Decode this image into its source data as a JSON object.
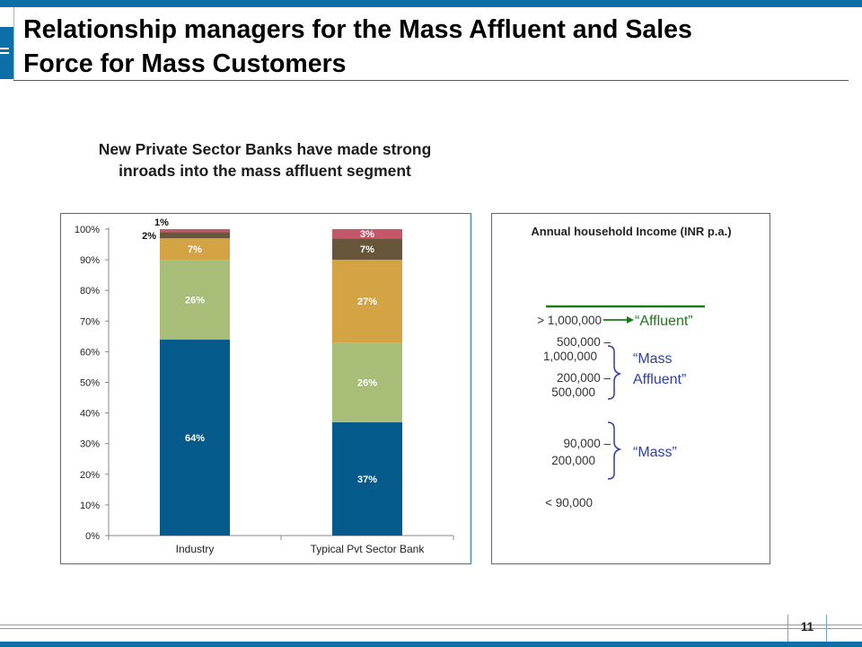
{
  "slide": {
    "title_line1": "Relationship managers for the Mass Affluent and Sales",
    "title_line2": "Force for Mass Customers",
    "subtitle_line1": "New Private Sector Banks have made strong",
    "subtitle_line2": "inroads into the mass affluent segment",
    "page_number": "11"
  },
  "colors": {
    "brand_blue": "#0d6ea8",
    "segment_64": "#045a8a",
    "segment_26": "#a7bd78",
    "segment_7": "#d4a444",
    "segment_2": "#675639",
    "segment_top": "#c4576a",
    "income_green": "#1b7a1b",
    "income_blue": "#2b3fa8"
  },
  "chart_data": {
    "type": "bar",
    "stacked": true,
    "categories": [
      "Industry",
      "Typical Pvt Sector Bank"
    ],
    "series": [
      {
        "values": [
          64,
          37
        ],
        "labels": [
          "64%",
          "37%"
        ],
        "color": "#045a8a"
      },
      {
        "values": [
          26,
          26
        ],
        "labels": [
          "26%",
          "26%"
        ],
        "color": "#a7bd78"
      },
      {
        "values": [
          7,
          27
        ],
        "labels": [
          "7%",
          "27%"
        ],
        "color": "#d4a444"
      },
      {
        "values": [
          2,
          7
        ],
        "labels": [
          "2%",
          "7%"
        ],
        "color": "#675639"
      },
      {
        "values": [
          1,
          3
        ],
        "labels": [
          "1%",
          "3%"
        ],
        "color": "#c4576a"
      }
    ],
    "yticks": [
      "0%",
      "10%",
      "20%",
      "30%",
      "40%",
      "50%",
      "60%",
      "70%",
      "80%",
      "90%",
      "100%"
    ],
    "ylim": [
      0,
      100
    ],
    "legend": "none",
    "grid": false
  },
  "income_panel": {
    "title": "Annual household Income (INR p.a.)",
    "brackets": [
      {
        "line1": "> 1,000,000",
        "line2": ""
      },
      {
        "line1": "500,000 –",
        "line2": "1,000,000"
      },
      {
        "line1": "200,000 –",
        "line2": "500,000"
      },
      {
        "line1": "90,000 –",
        "line2": "200,000"
      },
      {
        "line1": "< 90,000",
        "line2": ""
      }
    ],
    "segments": {
      "affluent": "“Affluent”",
      "mass_affluent_line1": "“Mass",
      "mass_affluent_line2": "Affluent”",
      "mass": "“Mass”"
    }
  }
}
